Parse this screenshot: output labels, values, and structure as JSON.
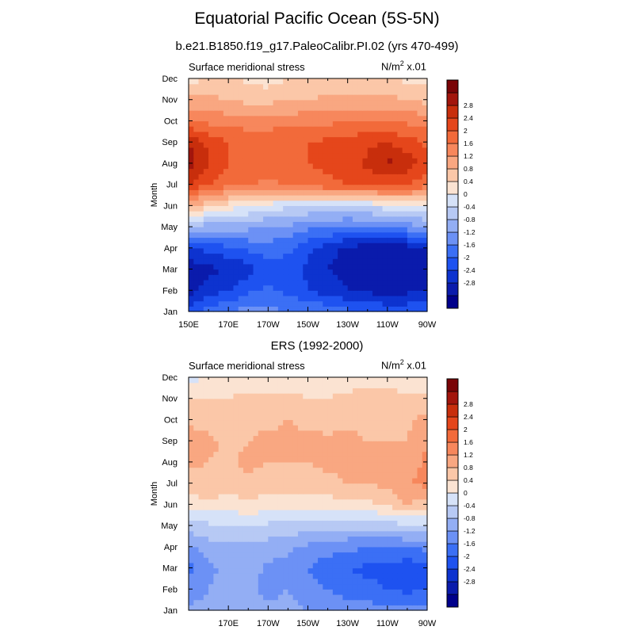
{
  "title": "Equatorial Pacific Ocean (5S-5N)",
  "palette": [
    "#00008b",
    "#0a1bac",
    "#0d33cf",
    "#1e52f0",
    "#3b6ff5",
    "#6c91f5",
    "#93aef4",
    "#b7c9f4",
    "#d6e2f8",
    "#fbe3d2",
    "#fbc7a8",
    "#f9a781",
    "#f7875c",
    "#f26a3a",
    "#e5461b",
    "#c82e0c",
    "#a2150c",
    "#7a0406"
  ],
  "colorbar_levels": [
    -3.2,
    -2.8,
    -2.4,
    -2,
    -1.6,
    -1.2,
    -0.8,
    -0.4,
    0,
    0.4,
    0.8,
    1.2,
    1.6,
    2,
    2.4,
    2.8,
    3.2
  ],
  "chart_data": [
    {
      "type": "heatmap",
      "subtitle": "b.e21.B1850.f19_g17.PaleoCalibr.PI.02 (yrs 470-499)",
      "left_label": "Surface meridional stress",
      "right_label": "N/m",
      "right_label_sup": "2",
      "right_label_tail": " x.01",
      "ylabel": "Month",
      "x": [
        "150E",
        "160E",
        "170E",
        "180",
        "170W",
        "160W",
        "150W",
        "140W",
        "130W",
        "120W",
        "110W",
        "100W",
        "90W"
      ],
      "x_tick_labels": [
        "150E",
        "170E",
        "170W",
        "150W",
        "130W",
        "110W",
        "90W"
      ],
      "y": [
        "Jan",
        "Feb",
        "Mar",
        "Apr",
        "May",
        "Jun",
        "Jul",
        "Aug",
        "Sep",
        "Oct",
        "Nov",
        "Dec"
      ],
      "colorbar_ticks": [
        "-2.8",
        "-2.4",
        "-2",
        "-1.6",
        "-1.2",
        "-0.8",
        "-0.4",
        "0",
        "0.4",
        "0.8",
        "1.2",
        "1.6",
        "2",
        "2.4",
        "2.8"
      ],
      "values": [
        [
          -2.2,
          -1.8,
          -1.6,
          -1.4,
          -1.5,
          -1.6,
          -1.6,
          -1.7,
          -1.9,
          -2.0,
          -2.1,
          -2.1,
          -2.1
        ],
        [
          -3.0,
          -2.6,
          -2.4,
          -2.1,
          -1.9,
          -2.1,
          -2.4,
          -2.6,
          -2.8,
          -2.9,
          -3.0,
          -2.9,
          -2.8
        ],
        [
          -3.1,
          -2.9,
          -2.8,
          -2.6,
          -2.2,
          -2.2,
          -2.5,
          -2.8,
          -3.0,
          -3.2,
          -3.2,
          -3.2,
          -3.1
        ],
        [
          -2.5,
          -2.3,
          -2.1,
          -1.9,
          -1.8,
          -1.9,
          -2.3,
          -2.6,
          -2.9,
          -3.0,
          -3.1,
          -3.0,
          -2.8
        ],
        [
          -1.0,
          -1.0,
          -1.0,
          -1.1,
          -1.2,
          -1.3,
          -1.5,
          -1.6,
          -1.7,
          -1.7,
          -1.6,
          -1.4,
          -1.2
        ],
        [
          0.8,
          0.5,
          0.2,
          0.0,
          -0.2,
          -0.3,
          -0.4,
          -0.4,
          -0.4,
          -0.3,
          -0.2,
          -0.1,
          0.0
        ],
        [
          2.4,
          2.0,
          1.7,
          1.6,
          1.5,
          1.6,
          1.8,
          1.9,
          2.0,
          2.0,
          2.1,
          2.0,
          1.8
        ],
        [
          3.0,
          2.4,
          2.0,
          1.9,
          1.9,
          1.9,
          2.0,
          2.1,
          2.2,
          2.5,
          2.9,
          2.6,
          2.2
        ],
        [
          2.8,
          2.3,
          2.0,
          1.9,
          1.9,
          2.0,
          2.0,
          2.1,
          2.2,
          2.3,
          2.4,
          2.2,
          1.9
        ],
        [
          1.6,
          1.5,
          1.4,
          1.4,
          1.4,
          1.4,
          1.5,
          1.5,
          1.6,
          1.6,
          1.6,
          1.5,
          1.4
        ],
        [
          0.9,
          0.9,
          0.8,
          0.7,
          0.7,
          0.8,
          0.8,
          0.9,
          0.9,
          0.9,
          0.9,
          0.8,
          0.7
        ],
        [
          0.2,
          0.5,
          0.5,
          0.3,
          0.2,
          0.4,
          0.5,
          0.5,
          0.4,
          0.4,
          0.4,
          0.3,
          0.2
        ]
      ]
    },
    {
      "type": "heatmap",
      "subtitle": "ERS (1992-2000)",
      "left_label": "Surface meridional stress",
      "right_label": "N/m",
      "right_label_sup": "2",
      "right_label_tail": " x.01",
      "ylabel": "Month",
      "x": [
        "150E",
        "160E",
        "170E",
        "180",
        "170W",
        "160W",
        "150W",
        "140W",
        "130W",
        "120W",
        "110W",
        "100W",
        "90W"
      ],
      "x_tick_labels": [
        "170E",
        "170W",
        "150W",
        "130W",
        "110W",
        "90W"
      ],
      "y": [
        "Jan",
        "Feb",
        "Mar",
        "Apr",
        "May",
        "Jun",
        "Jul",
        "Aug",
        "Sep",
        "Oct",
        "Nov",
        "Dec"
      ],
      "colorbar_ticks": [
        "-2.8",
        "-2.4",
        "-2",
        "-1.6",
        "-1.2",
        "-0.8",
        "-0.4",
        "0",
        "0.4",
        "0.8",
        "1.2",
        "1.6",
        "2",
        "2.4",
        "2.8"
      ],
      "values": [
        [
          -1.1,
          -1.0,
          -0.9,
          -1.0,
          -1.1,
          -1.1,
          -1.2,
          -1.3,
          -1.4,
          -1.4,
          -1.5,
          -1.5,
          -1.4
        ],
        [
          -1.5,
          -1.2,
          -1.0,
          -1.1,
          -1.3,
          -1.2,
          -1.4,
          -1.6,
          -1.8,
          -1.9,
          -2.0,
          -2.1,
          -2.0
        ],
        [
          -1.7,
          -1.3,
          -1.1,
          -1.0,
          -1.3,
          -1.3,
          -1.6,
          -1.9,
          -2.0,
          -2.1,
          -2.1,
          -2.3,
          -2.2
        ],
        [
          -1.3,
          -1.0,
          -0.9,
          -0.9,
          -1.0,
          -1.1,
          -1.3,
          -1.4,
          -1.5,
          -1.6,
          -1.6,
          -1.6,
          -1.5
        ],
        [
          -0.6,
          -0.5,
          -0.4,
          -0.4,
          -0.5,
          -0.5,
          -0.6,
          -0.6,
          -0.7,
          -0.6,
          -0.6,
          -0.5,
          -0.4
        ],
        [
          0.2,
          0.3,
          0.2,
          0.3,
          0.2,
          0.1,
          0.1,
          0.2,
          0.2,
          0.3,
          0.4,
          0.8,
          0.6
        ],
        [
          0.6,
          0.7,
          0.6,
          0.7,
          0.6,
          0.6,
          0.6,
          0.7,
          0.8,
          0.8,
          0.9,
          1.2,
          1.3
        ],
        [
          0.9,
          0.8,
          0.7,
          0.9,
          0.8,
          0.8,
          0.8,
          0.9,
          0.9,
          0.9,
          0.9,
          1.0,
          1.3
        ],
        [
          1.1,
          0.9,
          0.7,
          0.8,
          0.9,
          0.9,
          0.9,
          0.9,
          0.9,
          0.8,
          0.8,
          0.8,
          1.2
        ],
        [
          0.7,
          0.6,
          0.6,
          0.7,
          0.7,
          0.8,
          0.7,
          0.6,
          0.7,
          0.7,
          0.7,
          0.7,
          1.0
        ],
        [
          0.4,
          0.4,
          0.4,
          0.5,
          0.5,
          0.5,
          0.4,
          0.4,
          0.5,
          0.6,
          0.6,
          0.5,
          0.5
        ],
        [
          -0.2,
          0.1,
          0.2,
          0.2,
          0.1,
          0.2,
          0.2,
          0.1,
          0.2,
          0.2,
          0.2,
          0.1,
          0.1
        ]
      ]
    }
  ]
}
